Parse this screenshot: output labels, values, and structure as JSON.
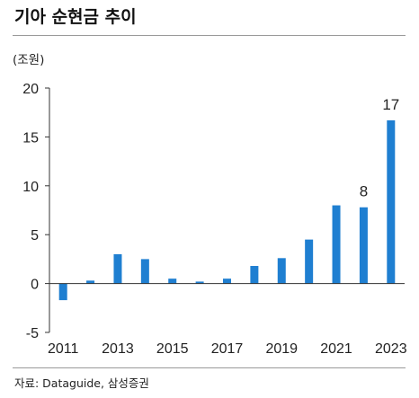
{
  "title": "기아 순현금 추이",
  "unit_label": "(조원)",
  "source": "자료: Dataguide, 삼성증권",
  "colors": {
    "bar": "#1f7fd1",
    "axis": "#333333",
    "rule": "#9a9a9a"
  },
  "chart_data": {
    "type": "bar",
    "title": "기아 순현금 추이",
    "ylabel": "(조원)",
    "xlabel": "",
    "ylim": [
      -5,
      20
    ],
    "yticks": [
      -5,
      0,
      5,
      10,
      15,
      20
    ],
    "categories": [
      "2011",
      "2012",
      "2013",
      "2014",
      "2015",
      "2016",
      "2017",
      "2018",
      "2019",
      "2020",
      "2021",
      "2022",
      "2023"
    ],
    "x_tick_labels": [
      "2011",
      "",
      "2013",
      "",
      "2015",
      "",
      "2017",
      "",
      "2019",
      "",
      "2021",
      "",
      "2023"
    ],
    "values": [
      -1.7,
      0.3,
      3.0,
      2.5,
      0.5,
      0.2,
      0.5,
      1.8,
      2.6,
      4.5,
      8.0,
      7.8,
      16.7
    ],
    "data_labels": [
      "",
      "",
      "",
      "",
      "",
      "",
      "",
      "",
      "",
      "",
      "",
      "8",
      "17"
    ],
    "grid": false,
    "legend": "none"
  }
}
